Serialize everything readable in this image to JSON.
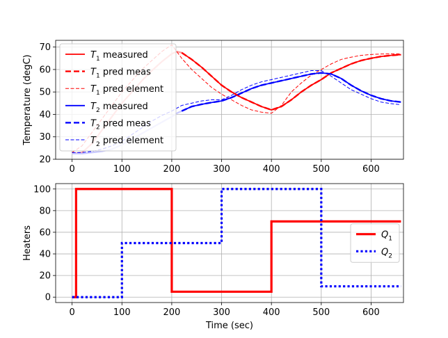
{
  "chart_data": [
    {
      "type": "line",
      "title": "",
      "xlabel": "",
      "ylabel": "Temperature (degC)",
      "xlim": [
        -33,
        665
      ],
      "ylim": [
        20,
        73
      ],
      "xticks": [
        "0",
        "100",
        "200",
        "300",
        "400",
        "500",
        "600"
      ],
      "yticks": [
        "20",
        "30",
        "40",
        "50",
        "60",
        "70"
      ],
      "grid": true,
      "legend_position": "upper-left",
      "series": [
        {
          "name": "T1 measured",
          "legend_main": "T",
          "legend_sub": "1",
          "legend_rest": " measured",
          "color": "#ff0000",
          "style": "solid",
          "x": [
            220,
            240,
            260,
            280,
            300,
            320,
            340,
            360,
            380,
            400,
            420,
            440,
            460,
            480,
            500,
            520,
            540,
            560,
            580,
            600,
            620,
            640,
            660
          ],
          "y": [
            67.5,
            64.5,
            61.0,
            57.0,
            53.0,
            50.0,
            47.5,
            45.5,
            43.5,
            42.0,
            43.5,
            46.5,
            50.0,
            53.0,
            55.5,
            58.5,
            60.5,
            62.5,
            64.0,
            65.0,
            65.8,
            66.3,
            66.6
          ]
        },
        {
          "name": "T1 pred meas",
          "legend_main": "T",
          "legend_sub": "1",
          "legend_rest": " pred meas",
          "color": "#ff0000",
          "style": "dashed-thick",
          "x": [
            220,
            240,
            260,
            280,
            300,
            320,
            340,
            360,
            380,
            400,
            420,
            440,
            460,
            480,
            500,
            520,
            540,
            560,
            580,
            600,
            620,
            640,
            660
          ],
          "y": [
            67.5,
            64.5,
            61.0,
            57.0,
            53.0,
            50.0,
            47.5,
            45.5,
            43.5,
            42.0,
            43.5,
            46.5,
            50.0,
            53.0,
            55.5,
            58.5,
            60.5,
            62.5,
            64.0,
            65.0,
            65.8,
            66.3,
            66.6
          ]
        },
        {
          "name": "T1 pred element",
          "legend_main": "T",
          "legend_sub": "1",
          "legend_rest": " pred element",
          "color": "#ff0000",
          "style": "dashed-thin",
          "x": [
            0,
            20,
            40,
            60,
            80,
            100,
            120,
            140,
            160,
            180,
            200,
            220,
            240,
            260,
            280,
            300,
            320,
            340,
            360,
            380,
            400,
            420,
            440,
            460,
            480,
            500,
            520,
            540,
            560,
            580,
            600,
            620,
            640,
            660
          ],
          "y": [
            23.0,
            26.0,
            32.0,
            38.0,
            44.0,
            50.0,
            55.0,
            60.0,
            64.0,
            68.0,
            71.0,
            65.0,
            60.0,
            56.0,
            52.0,
            49.0,
            46.5,
            44.0,
            42.0,
            41.0,
            40.5,
            44.0,
            50.0,
            54.0,
            57.5,
            60.0,
            62.5,
            64.5,
            65.5,
            66.3,
            66.7,
            66.9,
            67.0,
            67.0
          ]
        },
        {
          "name": "T2 measured",
          "legend_main": "T",
          "legend_sub": "2",
          "legend_rest": " measured",
          "color": "#0000ff",
          "style": "solid",
          "x": [
            220,
            240,
            260,
            280,
            300,
            320,
            340,
            360,
            380,
            400,
            420,
            440,
            460,
            480,
            500,
            520,
            540,
            560,
            580,
            600,
            620,
            640,
            660
          ],
          "y": [
            41.5,
            43.5,
            44.5,
            45.3,
            46.0,
            47.5,
            49.5,
            51.5,
            53.0,
            54.0,
            55.0,
            56.0,
            57.0,
            58.0,
            58.5,
            58.0,
            56.0,
            53.0,
            50.5,
            48.5,
            47.0,
            46.0,
            45.5
          ]
        },
        {
          "name": "T2 pred meas",
          "legend_main": "T",
          "legend_sub": "2",
          "legend_rest": " pred meas",
          "color": "#0000ff",
          "style": "dashed-thick",
          "x": [
            220,
            240,
            260,
            280,
            300,
            320,
            340,
            360,
            380,
            400,
            420,
            440,
            460,
            480,
            500,
            520,
            540,
            560,
            580,
            600,
            620,
            640,
            660
          ],
          "y": [
            41.5,
            43.5,
            44.5,
            45.3,
            46.0,
            47.5,
            49.5,
            51.5,
            53.0,
            54.0,
            55.0,
            56.0,
            57.0,
            58.0,
            58.5,
            58.0,
            56.0,
            53.0,
            50.5,
            48.5,
            47.0,
            46.0,
            45.5
          ]
        },
        {
          "name": "T2 pred element",
          "legend_main": "T",
          "legend_sub": "2",
          "legend_rest": " pred element",
          "color": "#0000ff",
          "style": "dashed-thin",
          "x": [
            0,
            20,
            40,
            60,
            80,
            100,
            120,
            140,
            160,
            180,
            200,
            220,
            240,
            260,
            280,
            300,
            320,
            340,
            360,
            380,
            400,
            420,
            440,
            460,
            480,
            500,
            520,
            540,
            560,
            580,
            600,
            620,
            640,
            660
          ],
          "y": [
            23.0,
            23.0,
            23.5,
            24.5,
            26.0,
            28.0,
            31.0,
            34.0,
            37.0,
            39.5,
            41.5,
            44.0,
            45.0,
            46.0,
            46.5,
            46.5,
            48.5,
            51.0,
            53.0,
            54.5,
            55.5,
            56.5,
            57.5,
            58.5,
            59.5,
            59.5,
            57.0,
            54.0,
            51.0,
            49.0,
            47.0,
            45.5,
            44.8,
            44.3
          ]
        }
      ],
      "faded_trace": {
        "t1": {
          "color": "#ff9999",
          "x": [
            0,
            20,
            40,
            60,
            80,
            100,
            120,
            140,
            160,
            180,
            200,
            210,
            220
          ],
          "y": [
            22.5,
            23.0,
            27.0,
            33.0,
            39.0,
            45.0,
            50.0,
            55.0,
            59.5,
            63.5,
            67.0,
            68.0,
            67.5
          ]
        },
        "t2": {
          "color": "#c8c8ff",
          "x": [
            0,
            20,
            40,
            60,
            80,
            100,
            120,
            140,
            160,
            180,
            200,
            210,
            220
          ],
          "y": [
            22.5,
            22.5,
            23.0,
            23.5,
            24.5,
            26.5,
            29.0,
            31.5,
            34.0,
            36.5,
            39.0,
            40.5,
            41.5
          ]
        }
      }
    },
    {
      "type": "line",
      "title": "",
      "xlabel": "Time (sec)",
      "ylabel": "Heaters",
      "xlim": [
        -33,
        665
      ],
      "ylim": [
        -5,
        105
      ],
      "xticks": [
        "0",
        "100",
        "200",
        "300",
        "400",
        "500",
        "600"
      ],
      "yticks": [
        "0",
        "20",
        "40",
        "60",
        "80",
        "100"
      ],
      "grid": true,
      "legend_position": "center-right",
      "series": [
        {
          "name": "Q1",
          "legend_main": "Q",
          "legend_sub": "1",
          "legend_rest": "",
          "color": "#ff0000",
          "style": "solid-thick",
          "x": [
            0,
            8,
            8,
            200,
            200,
            400,
            400,
            660
          ],
          "y": [
            0,
            0,
            100,
            100,
            5,
            5,
            70,
            70
          ]
        },
        {
          "name": "Q2",
          "legend_main": "Q",
          "legend_sub": "2",
          "legend_rest": "",
          "color": "#0000ff",
          "style": "dotted-thick",
          "x": [
            0,
            100,
            100,
            300,
            300,
            500,
            500,
            660
          ],
          "y": [
            0,
            0,
            50,
            50,
            100,
            100,
            10,
            10
          ]
        }
      ]
    }
  ]
}
